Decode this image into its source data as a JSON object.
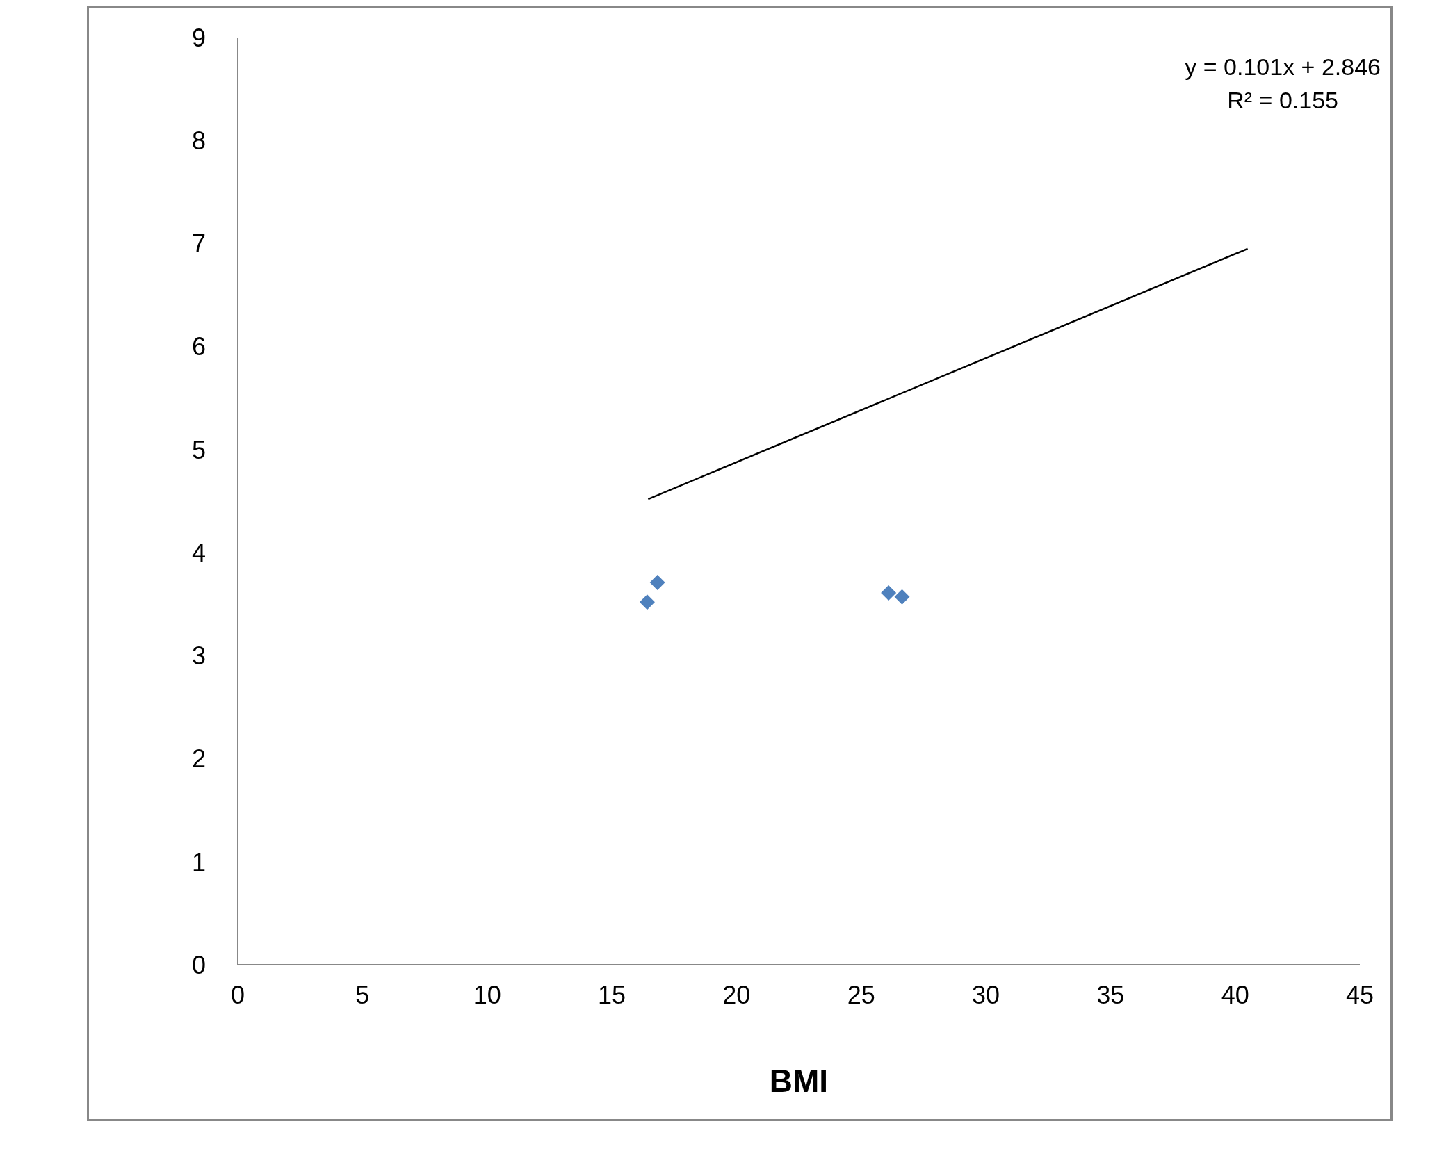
{
  "chart_data": {
    "type": "scatter",
    "xlabel": "BMI",
    "xlim": [
      0,
      45
    ],
    "xticks": [
      0,
      5,
      10,
      15,
      20,
      25,
      30,
      35,
      40,
      45
    ],
    "ylim": [
      0,
      9
    ],
    "yticks": [
      0,
      1,
      2,
      3,
      4,
      5,
      6,
      7,
      8,
      9
    ],
    "grid": false,
    "legend": false,
    "marker": "diamond",
    "series": [
      {
        "color": "#4f81bd",
        "x": [
          16.42,
          16.83,
          26.1,
          26.64
        ],
        "values": [
          3.52,
          3.71,
          3.61,
          3.57
        ]
      },
      {
        "type": "line",
        "color": "#000000",
        "x": [
          16.46,
          40.5
        ],
        "values": [
          4.52,
          6.95
        ],
        "marker": "none",
        "line_style": "solid"
      }
    ],
    "annotations": [
      "y = 0.101x + 2.846",
      "R² = 0.155"
    ]
  }
}
